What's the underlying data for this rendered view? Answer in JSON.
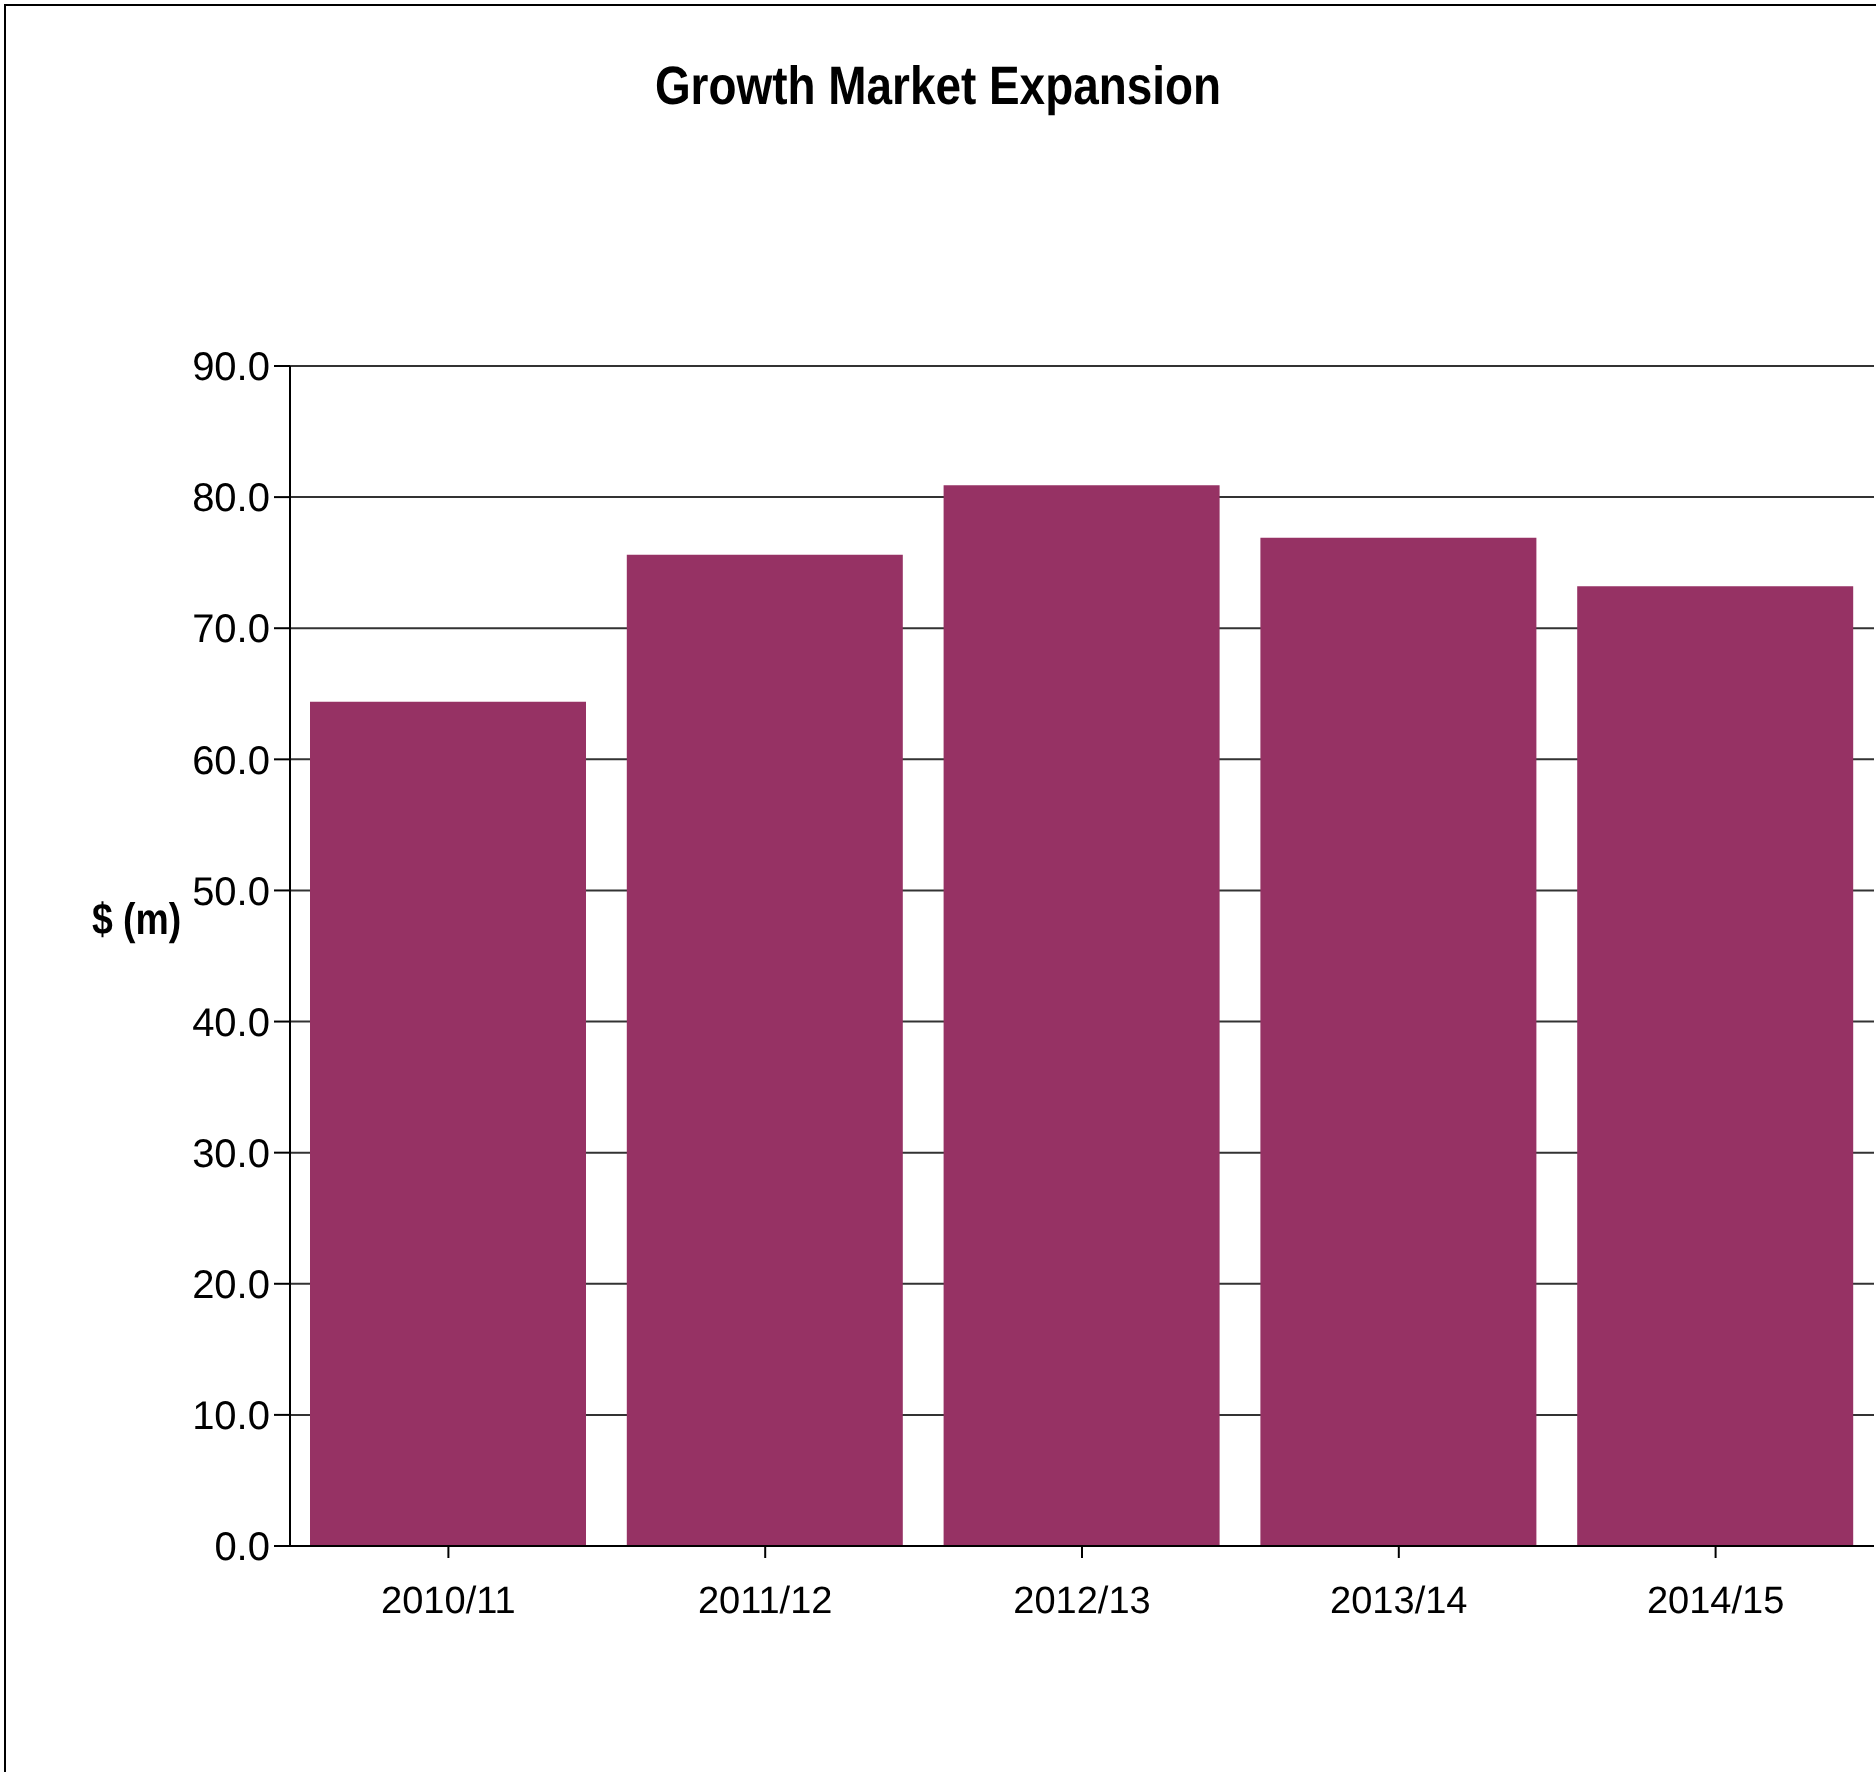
{
  "chart_data": {
    "type": "bar",
    "title": "Growth Market Expansion",
    "ylabel": "$ (m)",
    "categories": [
      "2010/11",
      "2011/12",
      "2012/13",
      "2013/14",
      "2014/15"
    ],
    "values": [
      64.4,
      75.6,
      80.9,
      76.9,
      73.2
    ],
    "color": "#963264",
    "ylim": [
      0,
      90
    ],
    "yticks": [
      {
        "value": 0,
        "label": "0.0"
      },
      {
        "value": 10,
        "label": "10.0"
      },
      {
        "value": 20,
        "label": "20.0"
      },
      {
        "value": 30,
        "label": "30.0"
      },
      {
        "value": 40,
        "label": "40.0"
      },
      {
        "value": 50,
        "label": "50.0"
      },
      {
        "value": 60,
        "label": "60.0"
      },
      {
        "value": 70,
        "label": "70.0"
      },
      {
        "value": 80,
        "label": "80.0"
      },
      {
        "value": 90,
        "label": "90.0"
      }
    ],
    "grid": "y",
    "legend": false
  }
}
